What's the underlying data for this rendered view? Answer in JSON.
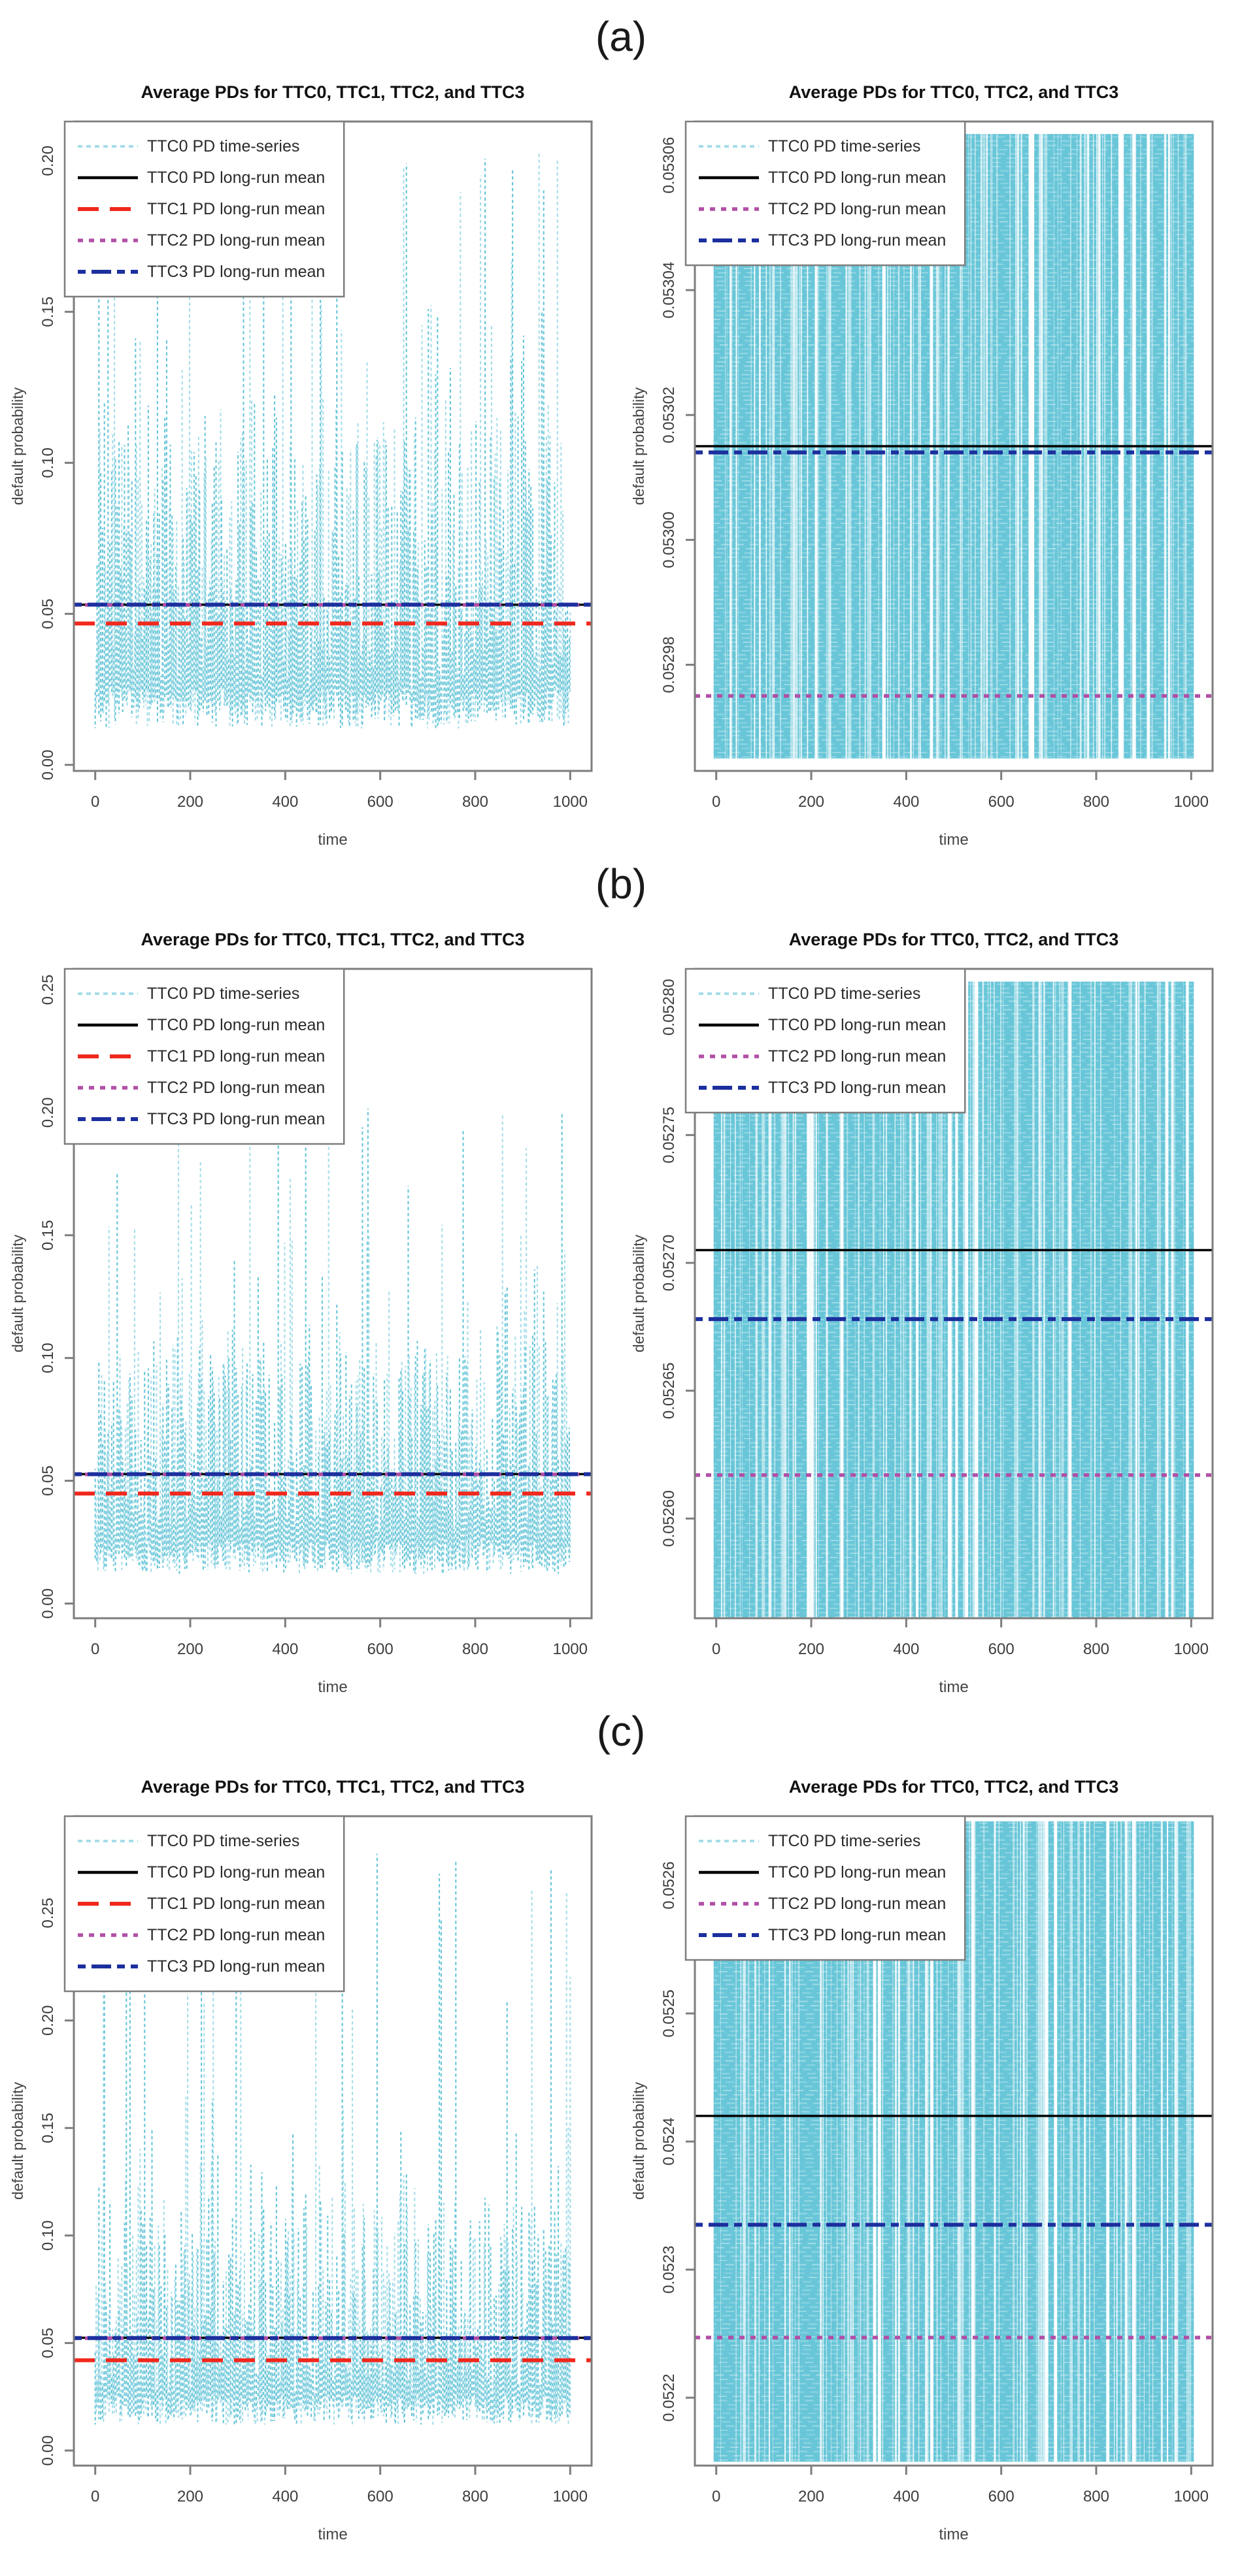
{
  "figure": {
    "panels": [
      {
        "label": "(a)"
      },
      {
        "label": "(b)"
      },
      {
        "label": "(c)"
      }
    ]
  },
  "colors": {
    "series_cyan": "#68c6d8",
    "series_cyan_light": "#a5dde9",
    "ttc0_mean_black": "#000000",
    "ttc1_mean_red": "#f2281d",
    "ttc2_mean_magenta": "#b14fa6",
    "ttc3_mean_navy": "#1c2f9e",
    "frame_gray": "#7d7d7d",
    "tick_text": "#3d3d3d",
    "title_text": "#111111",
    "axis_label_text": "#444444"
  },
  "chart_data": [
    {
      "panel": "a",
      "position": "left",
      "type": "line",
      "title": "Average PDs for TTC0, TTC1, TTC2, and TTC3",
      "xlabel": "time",
      "ylabel": "default probability",
      "xlim": [
        -45,
        1045
      ],
      "x_ticks": [
        0,
        200,
        400,
        600,
        800,
        1000
      ],
      "ylim": [
        -0.002,
        0.213
      ],
      "y_ticks": [
        0.0,
        0.05,
        0.1,
        0.15,
        0.2
      ],
      "y_tick_labels": [
        "0.00",
        "0.05",
        "0.10",
        "0.15",
        "0.20"
      ],
      "grid": false,
      "legend_position": "top-left",
      "series": {
        "label": "TTC0 PD time-series",
        "color": "#68c6d8",
        "color_alt": "#a5dde9",
        "line_style": "dashed",
        "n_points": 1000,
        "pattern": "spiky",
        "base_range": [
          0.012,
          0.095
        ],
        "spike_max": 0.207,
        "seed": 7
      },
      "mean_lines": [
        {
          "label": "TTC0 PD long-run mean",
          "value": 0.05302,
          "color": "#000000",
          "dash": "solid"
        },
        {
          "label": "TTC1 PD long-run mean",
          "value": 0.0468,
          "color": "#f2281d",
          "dash": "longdash"
        },
        {
          "label": "TTC2 PD long-run mean",
          "value": 0.05297,
          "color": "#b14fa6",
          "dash": "dot"
        },
        {
          "label": "TTC3 PD long-run mean",
          "value": 0.05304,
          "color": "#1c2f9e",
          "dash": "dashdot"
        }
      ],
      "legend": [
        {
          "label": "TTC0 PD time-series",
          "color": "#a5dde9",
          "dash": "tsdash"
        },
        {
          "label": "TTC0 PD long-run mean",
          "color": "#000000",
          "dash": "solid"
        },
        {
          "label": "TTC1 PD long-run mean",
          "color": "#f2281d",
          "dash": "longdash"
        },
        {
          "label": "TTC2 PD long-run mean",
          "color": "#b14fa6",
          "dash": "dot"
        },
        {
          "label": "TTC3 PD long-run mean",
          "color": "#1c2f9e",
          "dash": "dashdot"
        }
      ]
    },
    {
      "panel": "a",
      "position": "right",
      "type": "line",
      "title": "Average PDs for TTC0, TTC2, and TTC3",
      "xlabel": "time",
      "ylabel": "default probability",
      "xlim": [
        -45,
        1045
      ],
      "x_ticks": [
        0,
        200,
        400,
        600,
        800,
        1000
      ],
      "ylim": [
        0.052963,
        0.053067
      ],
      "y_ticks": [
        0.05298,
        0.053,
        0.05302,
        0.05304,
        0.05306
      ],
      "y_tick_labels": [
        "0.05298",
        "0.05300",
        "0.05302",
        "0.05304",
        "0.05306"
      ],
      "grid": false,
      "legend_position": "top-left",
      "series": {
        "label": "TTC0 PD time-series",
        "color": "#68c6d8",
        "color_alt": "#a5dde9",
        "line_style": "dashed",
        "n_points": 1000,
        "pattern": "dense",
        "value_range": [
          0.052965,
          0.053065
        ],
        "seed": 13
      },
      "mean_lines": [
        {
          "label": "TTC0 PD long-run mean",
          "value": 0.053015,
          "color": "#000000",
          "dash": "solid"
        },
        {
          "label": "TTC2 PD long-run mean",
          "value": 0.052975,
          "color": "#b14fa6",
          "dash": "dot"
        },
        {
          "label": "TTC3 PD long-run mean",
          "value": 0.053014,
          "color": "#1c2f9e",
          "dash": "dashdot"
        }
      ],
      "legend": [
        {
          "label": "TTC0 PD time-series",
          "color": "#a5dde9",
          "dash": "tsdash"
        },
        {
          "label": "TTC0 PD long-run mean",
          "color": "#000000",
          "dash": "solid"
        },
        {
          "label": "TTC2 PD long-run mean",
          "color": "#b14fa6",
          "dash": "dot"
        },
        {
          "label": "TTC3 PD long-run mean",
          "color": "#1c2f9e",
          "dash": "dashdot"
        }
      ]
    },
    {
      "panel": "b",
      "position": "left",
      "type": "line",
      "title": "Average PDs for TTC0, TTC1, TTC2, and TTC3",
      "xlabel": "time",
      "ylabel": "default probability",
      "xlim": [
        -45,
        1045
      ],
      "x_ticks": [
        0,
        200,
        400,
        600,
        800,
        1000
      ],
      "ylim": [
        -0.006,
        0.2585
      ],
      "y_ticks": [
        0.0,
        0.05,
        0.1,
        0.15,
        0.2,
        0.25
      ],
      "y_tick_labels": [
        "0.00",
        "0.05",
        "0.10",
        "0.15",
        "0.20",
        "0.25"
      ],
      "grid": false,
      "legend_position": "top-left",
      "series": {
        "label": "TTC0 PD time-series",
        "color": "#68c6d8",
        "color_alt": "#a5dde9",
        "line_style": "dashed",
        "n_points": 1000,
        "pattern": "spiky",
        "base_range": [
          0.012,
          0.09
        ],
        "spike_max": 0.208,
        "seed": 21
      },
      "mean_lines": [
        {
          "label": "TTC0 PD long-run mean",
          "value": 0.0527,
          "color": "#000000",
          "dash": "solid"
        },
        {
          "label": "TTC1 PD long-run mean",
          "value": 0.0448,
          "color": "#f2281d",
          "dash": "longdash"
        },
        {
          "label": "TTC2 PD long-run mean",
          "value": 0.05262,
          "color": "#b14fa6",
          "dash": "dot"
        },
        {
          "label": "TTC3 PD long-run mean",
          "value": 0.05268,
          "color": "#1c2f9e",
          "dash": "dashdot"
        }
      ],
      "legend": [
        {
          "label": "TTC0 PD time-series",
          "color": "#a5dde9",
          "dash": "tsdash"
        },
        {
          "label": "TTC0 PD long-run mean",
          "color": "#000000",
          "dash": "solid"
        },
        {
          "label": "TTC1 PD long-run mean",
          "color": "#f2281d",
          "dash": "longdash"
        },
        {
          "label": "TTC2 PD long-run mean",
          "color": "#b14fa6",
          "dash": "dot"
        },
        {
          "label": "TTC3 PD long-run mean",
          "color": "#1c2f9e",
          "dash": "dashdot"
        }
      ]
    },
    {
      "panel": "b",
      "position": "right",
      "type": "line",
      "title": "Average PDs for TTC0, TTC2, and TTC3",
      "xlabel": "time",
      "ylabel": "default probability",
      "xlim": [
        -45,
        1045
      ],
      "x_ticks": [
        0,
        200,
        400,
        600,
        800,
        1000
      ],
      "ylim": [
        0.052561,
        0.052815
      ],
      "y_ticks": [
        0.0526,
        0.05265,
        0.0527,
        0.05275,
        0.0528
      ],
      "y_tick_labels": [
        "0.05260",
        "0.05265",
        "0.05270",
        "0.05275",
        "0.05280"
      ],
      "grid": false,
      "legend_position": "top-left",
      "series": {
        "label": "TTC0 PD time-series",
        "color": "#68c6d8",
        "color_alt": "#a5dde9",
        "line_style": "dashed",
        "n_points": 1000,
        "pattern": "dense",
        "value_range": [
          0.05256,
          0.05281
        ],
        "seed": 29
      },
      "mean_lines": [
        {
          "label": "TTC0 PD long-run mean",
          "value": 0.052705,
          "color": "#000000",
          "dash": "solid"
        },
        {
          "label": "TTC2 PD long-run mean",
          "value": 0.052617,
          "color": "#b14fa6",
          "dash": "dot"
        },
        {
          "label": "TTC3 PD long-run mean",
          "value": 0.052678,
          "color": "#1c2f9e",
          "dash": "dashdot"
        }
      ],
      "legend": [
        {
          "label": "TTC0 PD time-series",
          "color": "#a5dde9",
          "dash": "tsdash"
        },
        {
          "label": "TTC0 PD long-run mean",
          "color": "#000000",
          "dash": "solid"
        },
        {
          "label": "TTC2 PD long-run mean",
          "color": "#b14fa6",
          "dash": "dot"
        },
        {
          "label": "TTC3 PD long-run mean",
          "color": "#1c2f9e",
          "dash": "dashdot"
        }
      ]
    },
    {
      "panel": "c",
      "position": "left",
      "type": "line",
      "title": "Average PDs for TTC0, TTC1, TTC2, and TTC3",
      "xlabel": "time",
      "ylabel": "default probability",
      "xlim": [
        -45,
        1045
      ],
      "x_ticks": [
        0,
        200,
        400,
        600,
        800,
        1000
      ],
      "ylim": [
        -0.007,
        0.295
      ],
      "y_ticks": [
        0.0,
        0.05,
        0.1,
        0.15,
        0.2,
        0.25
      ],
      "y_tick_labels": [
        "0.00",
        "0.05",
        "0.10",
        "0.15",
        "0.20",
        "0.25"
      ],
      "grid": false,
      "legend_position": "top-left",
      "series": {
        "label": "TTC0 PD time-series",
        "color": "#68c6d8",
        "color_alt": "#a5dde9",
        "line_style": "dashed",
        "n_points": 1000,
        "pattern": "spiky",
        "base_range": [
          0.012,
          0.095
        ],
        "spike_max": 0.282,
        "seed": 35
      },
      "mean_lines": [
        {
          "label": "TTC0 PD long-run mean",
          "value": 0.05242,
          "color": "#000000",
          "dash": "solid"
        },
        {
          "label": "TTC1 PD long-run mean",
          "value": 0.042,
          "color": "#f2281d",
          "dash": "longdash"
        },
        {
          "label": "TTC2 PD long-run mean",
          "value": 0.05225,
          "color": "#b14fa6",
          "dash": "dot"
        },
        {
          "label": "TTC3 PD long-run mean",
          "value": 0.05234,
          "color": "#1c2f9e",
          "dash": "dashdot"
        }
      ],
      "legend": [
        {
          "label": "TTC0 PD time-series",
          "color": "#a5dde9",
          "dash": "tsdash"
        },
        {
          "label": "TTC0 PD long-run mean",
          "color": "#000000",
          "dash": "solid"
        },
        {
          "label": "TTC1 PD long-run mean",
          "color": "#f2281d",
          "dash": "longdash"
        },
        {
          "label": "TTC2 PD long-run mean",
          "color": "#b14fa6",
          "dash": "dot"
        },
        {
          "label": "TTC3 PD long-run mean",
          "color": "#1c2f9e",
          "dash": "dashdot"
        }
      ]
    },
    {
      "panel": "c",
      "position": "right",
      "type": "line",
      "title": "Average PDs for TTC0, TTC2, and TTC3",
      "xlabel": "time",
      "ylabel": "default probability",
      "xlim": [
        -45,
        1045
      ],
      "x_ticks": [
        0,
        200,
        400,
        600,
        800,
        1000
      ],
      "ylim": [
        0.052147,
        0.052654
      ],
      "y_ticks": [
        0.0522,
        0.0523,
        0.0524,
        0.0525,
        0.0526
      ],
      "y_tick_labels": [
        "0.0522",
        "0.0523",
        "0.0524",
        "0.0525",
        "0.0526"
      ],
      "grid": false,
      "legend_position": "top-left",
      "series": {
        "label": "TTC0 PD time-series",
        "color": "#68c6d8",
        "color_alt": "#a5dde9",
        "line_style": "dashed",
        "n_points": 1000,
        "pattern": "dense",
        "value_range": [
          0.05215,
          0.05265
        ],
        "seed": 41
      },
      "mean_lines": [
        {
          "label": "TTC0 PD long-run mean",
          "value": 0.05242,
          "color": "#000000",
          "dash": "solid"
        },
        {
          "label": "TTC2 PD long-run mean",
          "value": 0.052247,
          "color": "#b14fa6",
          "dash": "dot"
        },
        {
          "label": "TTC3 PD long-run mean",
          "value": 0.052335,
          "color": "#1c2f9e",
          "dash": "dashdot"
        }
      ],
      "legend": [
        {
          "label": "TTC0 PD time-series",
          "color": "#a5dde9",
          "dash": "tsdash"
        },
        {
          "label": "TTC0 PD long-run mean",
          "color": "#000000",
          "dash": "solid"
        },
        {
          "label": "TTC2 PD long-run mean",
          "color": "#b14fa6",
          "dash": "dot"
        },
        {
          "label": "TTC3 PD long-run mean",
          "color": "#1c2f9e",
          "dash": "dashdot"
        }
      ]
    }
  ]
}
